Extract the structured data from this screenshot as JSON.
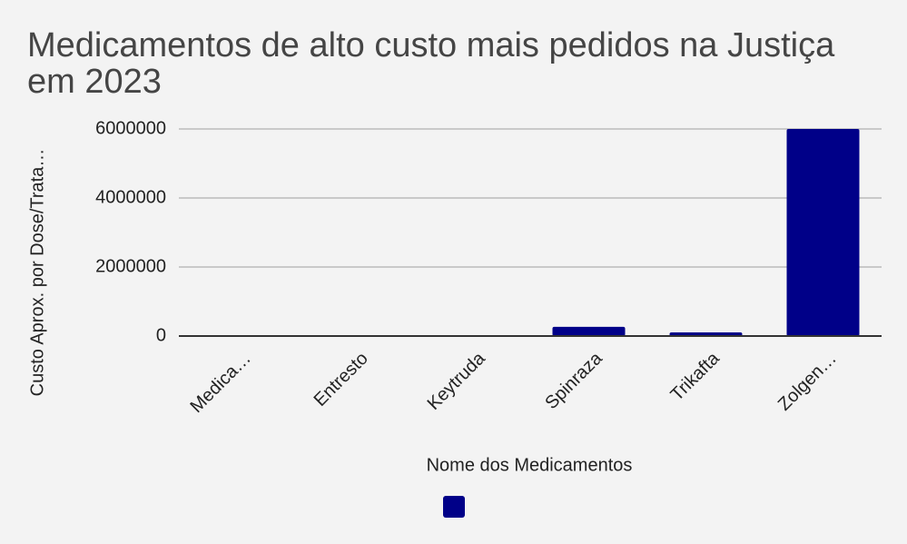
{
  "chart_data": {
    "type": "bar",
    "title": "Medicamentos de alto custo mais pedidos na Justiça em 2023",
    "x_label": "Nome dos Medicamentos",
    "y_label": "Custo Aprox. por Dose/Trata…",
    "categories": [
      "Medica…",
      "Entresto",
      "Keytruda",
      "Spinraza",
      "Trikafta",
      "Zolgen…"
    ],
    "values": [
      5000,
      10000,
      20000,
      265000,
      105000,
      6000000
    ],
    "color": "#000088",
    "ylim": [
      0,
      6000000
    ],
    "yticks": [
      0,
      2000000,
      4000000,
      6000000
    ],
    "grid": true,
    "legend": "bottom"
  }
}
